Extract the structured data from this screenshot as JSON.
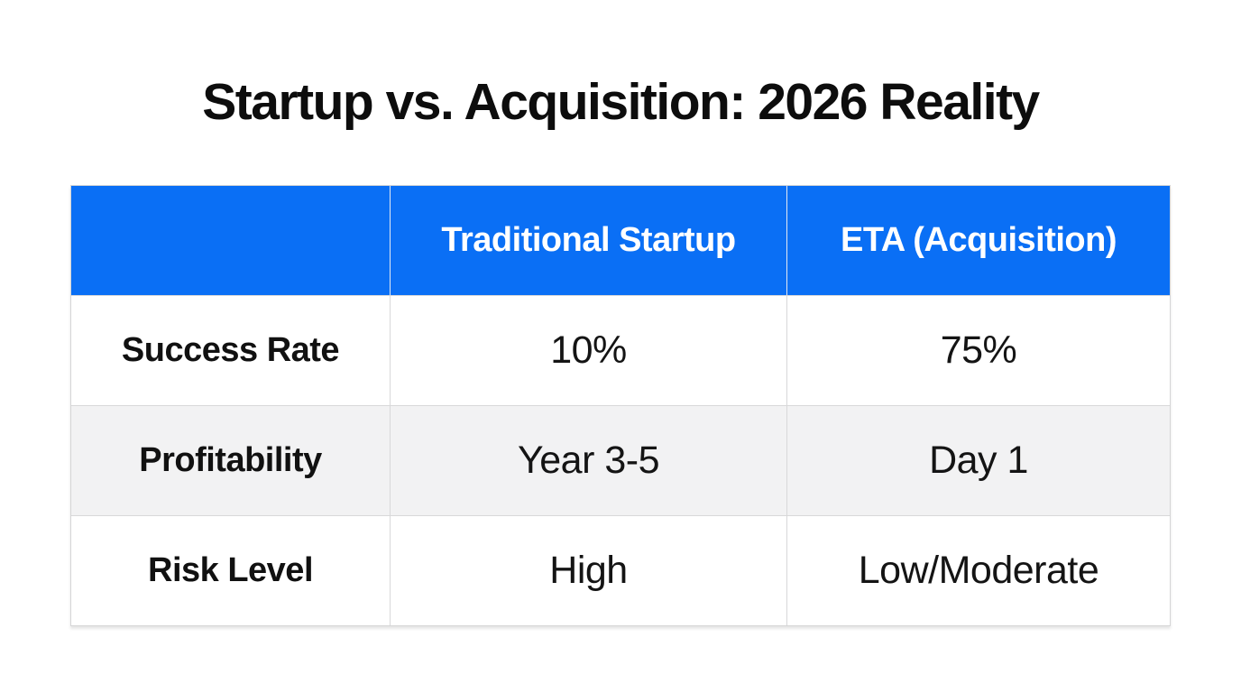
{
  "title": "Startup vs. Acquisition: 2026 Reality",
  "colors": {
    "header_bg": "#0a6ff5",
    "header_text": "#ffffff",
    "striped_row_bg": "#f2f2f3",
    "border": "#d8d8d9",
    "text": "#141414",
    "page_bg": "#ffffff"
  },
  "chart_data": {
    "type": "table",
    "title": "Startup vs. Acquisition: 2026 Reality",
    "columns": [
      "",
      "Traditional Startup",
      "ETA (Acquisition)"
    ],
    "rows": [
      [
        "Success Rate",
        "10%",
        "75%"
      ],
      [
        "Profitability",
        "Year 3-5",
        "Day 1"
      ],
      [
        "Risk Level",
        "High",
        "Low/Moderate"
      ]
    ],
    "layout_hints": {
      "header_style": "blue background, white bold text",
      "striped_rows": [
        1
      ],
      "alignment": "center"
    }
  }
}
